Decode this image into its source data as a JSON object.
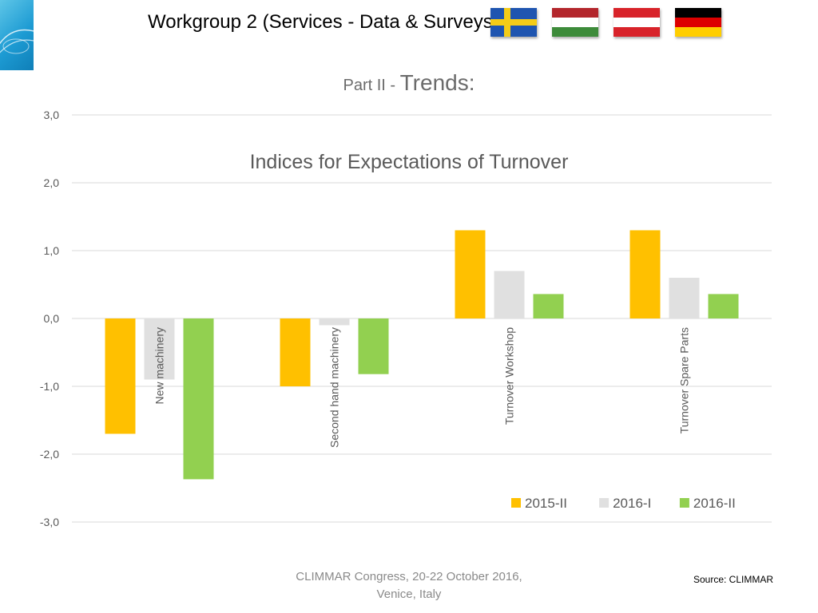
{
  "header": {
    "title": "Workgroup 2 (Services - Data & Surveys)",
    "flags": [
      "sweden-flag",
      "hungary-flag",
      "austria-flag",
      "germany-flag"
    ]
  },
  "part": {
    "prefix": "Part II - ",
    "word": "Trends:"
  },
  "chart_data": {
    "type": "bar",
    "title": "Indices for Expectations of Turnover",
    "categories": [
      "New machinery",
      "Second hand machinery",
      "Turnover Workshop",
      "Turnover Spare Parts"
    ],
    "series": [
      {
        "name": "2015-II",
        "color": "#FFC000",
        "values": [
          -1.7,
          -1.0,
          1.3,
          1.3
        ]
      },
      {
        "name": "2016-I",
        "color": "#E0E0E0",
        "values": [
          -0.9,
          -0.1,
          0.7,
          0.6
        ]
      },
      {
        "name": "2016-II",
        "color": "#92D050",
        "values": [
          -2.37,
          -0.82,
          0.36,
          0.36
        ]
      }
    ],
    "ylim": [
      -3,
      3
    ],
    "yticks": [
      "3,0",
      "2,0",
      "1,0",
      "0,0",
      "-1,0",
      "-2,0",
      "-3,0"
    ],
    "grid": true,
    "legend_position": "bottom-right"
  },
  "footer": {
    "line1": "CLIMMAR Congress, 20-22 October 2016,",
    "line2": "Venice, Italy",
    "source": "Source: CLIMMAR"
  }
}
